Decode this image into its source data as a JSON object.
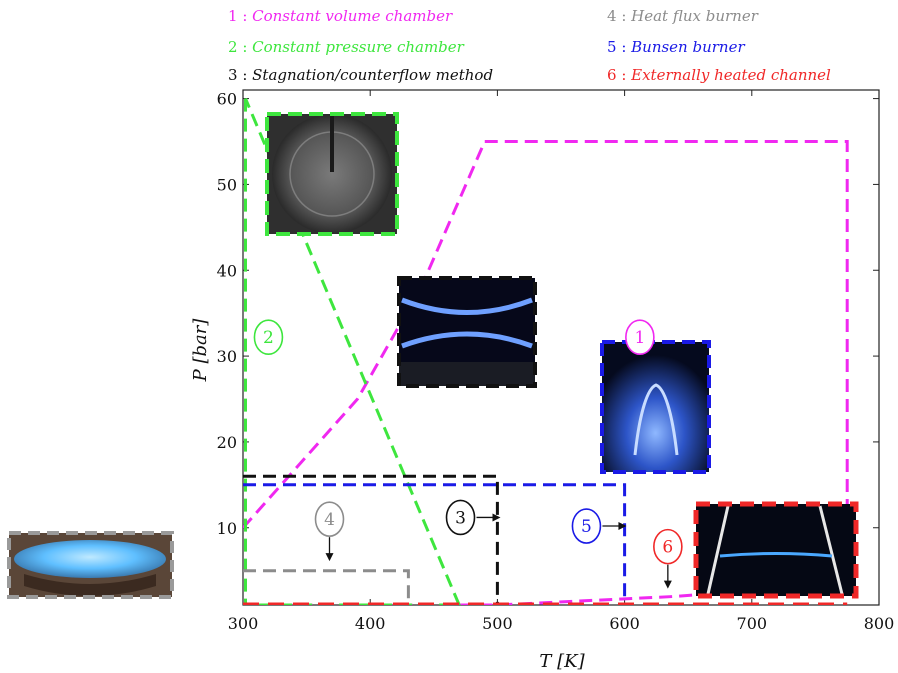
{
  "chart_data": {
    "type": "scatter",
    "xlabel": "T [K]",
    "ylabel": "P [bar]",
    "xlim": [
      300,
      800
    ],
    "ylim": [
      1,
      61
    ],
    "xticks": [
      300,
      400,
      500,
      600,
      700,
      800
    ],
    "yticks": [
      10,
      20,
      30,
      40,
      50,
      60
    ],
    "grid": false,
    "legend_position": "top",
    "legend": [
      {
        "num": "1",
        "label": "Constant volume chamber",
        "color": "#f028f0"
      },
      {
        "num": "2",
        "label": "Constant pressure chamber",
        "color": "#3ee63e"
      },
      {
        "num": "3",
        "label": "Stagnation/counterflow method",
        "color": "#111111"
      },
      {
        "num": "4",
        "label": "Heat flux burner",
        "color": "#8c8c8c"
      },
      {
        "num": "5",
        "label": "Bunsen burner",
        "color": "#1a1ae6"
      },
      {
        "num": "6",
        "label": "Externally heated channel",
        "color": "#f02828"
      }
    ],
    "series": [
      {
        "num": "1",
        "color": "#f028f0",
        "points": [
          [
            300,
            10
          ],
          [
            390,
            25
          ],
          [
            440,
            38
          ],
          [
            490,
            55
          ],
          [
            775,
            55
          ],
          [
            775,
            3.5
          ],
          [
            640,
            2
          ],
          [
            500,
            1
          ],
          [
            300,
            1
          ]
        ]
      },
      {
        "num": "2",
        "color": "#3ee63e",
        "points": [
          [
            302,
            60
          ],
          [
            302,
            1
          ],
          [
            470,
            1
          ],
          [
            302,
            60
          ]
        ]
      },
      {
        "num": "3",
        "color": "#111111",
        "points": [
          [
            300,
            16
          ],
          [
            500,
            16
          ],
          [
            500,
            1
          ]
        ]
      },
      {
        "num": "4",
        "color": "#8c8c8c",
        "points": [
          [
            300,
            5
          ],
          [
            430,
            5
          ],
          [
            430,
            1
          ]
        ]
      },
      {
        "num": "5",
        "color": "#1a1ae6",
        "points": [
          [
            300,
            15
          ],
          [
            600,
            15
          ],
          [
            600,
            1
          ]
        ]
      },
      {
        "num": "6",
        "color": "#f02828",
        "points": [
          [
            300,
            1
          ],
          [
            775,
            1
          ]
        ]
      }
    ],
    "markers": [
      {
        "num": "1",
        "x": 612,
        "y": 32.2,
        "color": "#f028f0",
        "arrow": false
      },
      {
        "num": "2",
        "x": 320,
        "y": 32.2,
        "color": "#3ee63e",
        "arrow": false
      },
      {
        "num": "3",
        "x": 471,
        "y": 11.2,
        "color": "#111111",
        "arrow": "right"
      },
      {
        "num": "4",
        "x": 368,
        "y": 11.0,
        "color": "#8c8c8c",
        "arrow": "down"
      },
      {
        "num": "5",
        "x": 570,
        "y": 10.2,
        "color": "#1a1ae6",
        "arrow": "right"
      },
      {
        "num": "6",
        "x": 634,
        "y": 7.8,
        "color": "#f02828",
        "arrow": "down"
      }
    ],
    "photos": [
      {
        "name": "constant-volume-photo",
        "border": "#3ee63e",
        "style": "disc"
      },
      {
        "name": "counterflow-flame-photo",
        "border": "#111111",
        "style": "counterflow"
      },
      {
        "name": "bunsen-flame-photo",
        "border": "#1a1ae6",
        "style": "bunsen"
      },
      {
        "name": "heated-channel-photo",
        "border": "#f02828",
        "style": "channel"
      },
      {
        "name": "heat-flux-burner-photo",
        "border": "#8c8c8c",
        "style": "flatflame"
      }
    ]
  }
}
